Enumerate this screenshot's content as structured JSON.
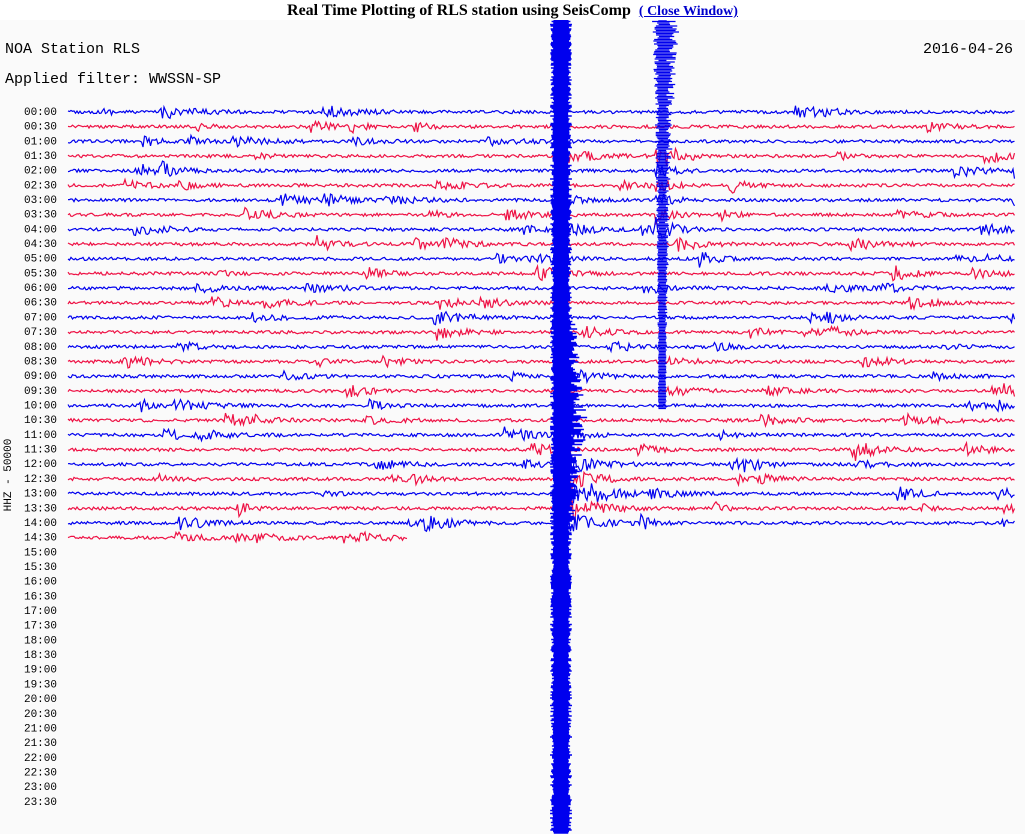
{
  "header": {
    "title": "Real Time Plotting of RLS station using SeisComp",
    "link": "( Close Window)"
  },
  "plot": {
    "station": "NOA Station RLS",
    "date": "2016-04-26",
    "filter": "Applied filter: WWSSN-SP",
    "channel": "HHZ - 50000",
    "rows": [
      "00:00",
      "00:30",
      "01:00",
      "01:30",
      "02:00",
      "02:30",
      "03:00",
      "03:30",
      "04:00",
      "04:30",
      "05:00",
      "05:30",
      "06:00",
      "06:30",
      "07:00",
      "07:30",
      "08:00",
      "08:30",
      "09:00",
      "09:30",
      "10:00",
      "10:30",
      "11:00",
      "11:30",
      "12:00",
      "12:30",
      "13:00",
      "13:30",
      "14:00",
      "14:30",
      "15:00",
      "15:30",
      "16:00",
      "16:30",
      "17:00",
      "17:30",
      "18:00",
      "18:30",
      "19:00",
      "19:30",
      "20:00",
      "20:30",
      "21:00",
      "21:30",
      "22:00",
      "22:30",
      "23:00",
      "23:30"
    ]
  }
}
